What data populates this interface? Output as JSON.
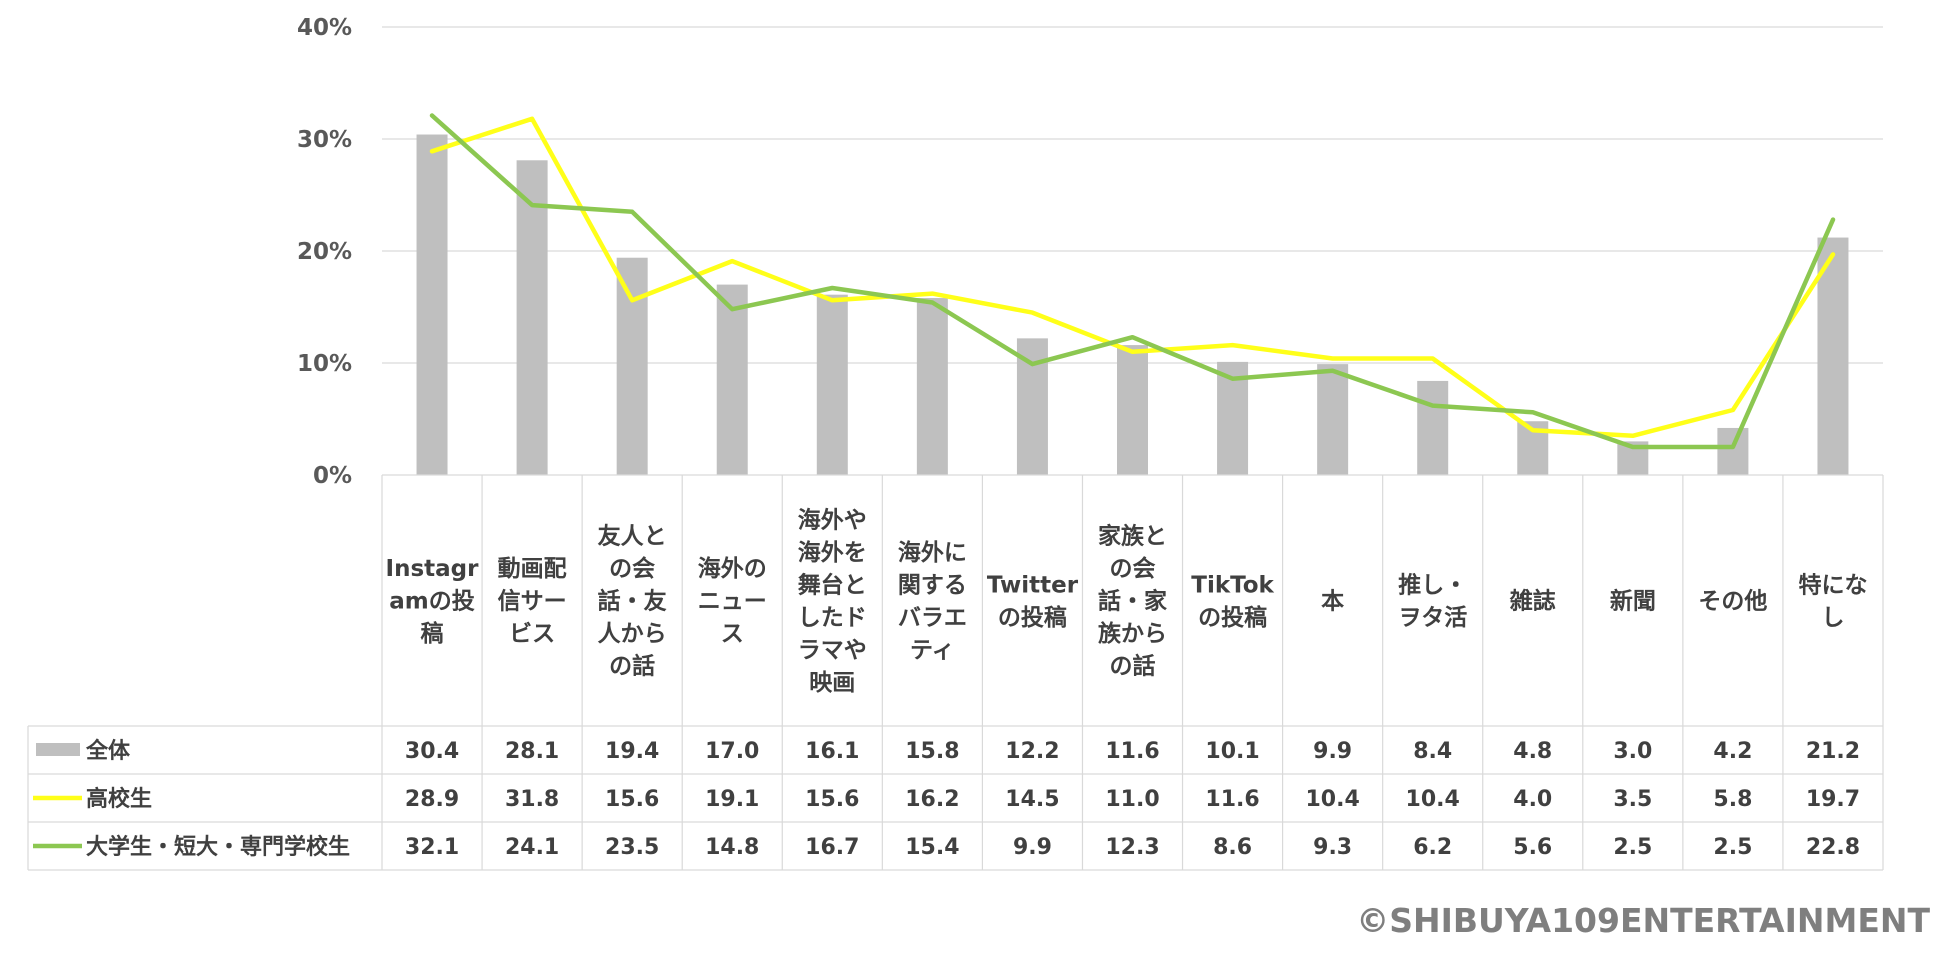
{
  "chart_data": {
    "type": "bar+line",
    "categories": [
      "Instagramの投稿",
      "動画配信サービス",
      "友人との会話・友人からの話",
      "海外のニュース",
      "海外や海外を舞台としたドラマや映画",
      "海外に関するバラエティ",
      "Twitterの投稿",
      "家族との会話・家族からの話",
      "TikTokの投稿",
      "本",
      "推し・ヲタ活",
      "雑誌",
      "新聞",
      "その他",
      "特になし"
    ],
    "category_label_lines": [
      [
        "Instagr",
        "amの投",
        "稿"
      ],
      [
        "動画配",
        "信サー",
        "ビス"
      ],
      [
        "友人と",
        "の会",
        "話・友",
        "人から",
        "の話"
      ],
      [
        "海外の",
        "ニュー",
        "ス"
      ],
      [
        "海外や",
        "海外を",
        "舞台と",
        "したド",
        "ラマや",
        "映画"
      ],
      [
        "海外に",
        "関する",
        "バラエ",
        "ティ"
      ],
      [
        "Twitter",
        "の投稿"
      ],
      [
        "家族と",
        "の会",
        "話・家",
        "族から",
        "の話"
      ],
      [
        "TikTok",
        "の投稿"
      ],
      [
        "本"
      ],
      [
        "推し・",
        "ヲタ活"
      ],
      [
        "雑誌"
      ],
      [
        "新聞"
      ],
      [
        "その他"
      ],
      [
        "特にな",
        "し"
      ]
    ],
    "series": [
      {
        "name": "全体",
        "kind": "bar",
        "color": "#bfbfbf",
        "values": [
          30.4,
          28.1,
          19.4,
          17.0,
          16.1,
          15.8,
          12.2,
          11.6,
          10.1,
          9.9,
          8.4,
          4.8,
          3.0,
          4.2,
          21.2
        ],
        "display": [
          "30.4",
          "28.1",
          "19.4",
          "17.0",
          "16.1",
          "15.8",
          "12.2",
          "11.6",
          "10.1",
          "9.9",
          "8.4",
          "4.8",
          "3.0",
          "4.2",
          "21.2"
        ]
      },
      {
        "name": "高校生",
        "kind": "line",
        "color": "#ffff19",
        "values": [
          28.9,
          31.8,
          15.6,
          19.1,
          15.6,
          16.2,
          14.5,
          11.0,
          11.6,
          10.4,
          10.4,
          4.0,
          3.5,
          5.8,
          19.7
        ],
        "display": [
          "28.9",
          "31.8",
          "15.6",
          "19.1",
          "15.6",
          "16.2",
          "14.5",
          "11.0",
          "11.6",
          "10.4",
          "10.4",
          "4.0",
          "3.5",
          "5.8",
          "19.7"
        ]
      },
      {
        "name": "大学生・短大・専門学校生",
        "kind": "line",
        "color": "#8cc751",
        "values": [
          32.1,
          24.1,
          23.5,
          14.8,
          16.7,
          15.4,
          9.9,
          12.3,
          8.6,
          9.3,
          6.2,
          5.6,
          2.5,
          2.5,
          22.8
        ],
        "display": [
          "32.1",
          "24.1",
          "23.5",
          "14.8",
          "16.7",
          "15.4",
          "9.9",
          "12.3",
          "8.6",
          "9.3",
          "6.2",
          "5.6",
          "2.5",
          "2.5",
          "22.8"
        ]
      }
    ],
    "yticks": [
      0,
      10,
      20,
      30,
      40
    ],
    "ytick_labels": [
      "0%",
      "10%",
      "20%",
      "30%",
      "40%"
    ],
    "ylim": [
      0,
      40
    ],
    "grid": true,
    "legend": "data-table-left",
    "table_under_chart": true
  },
  "copyright": "©SHIBUYA109ENTERTAINMENT"
}
